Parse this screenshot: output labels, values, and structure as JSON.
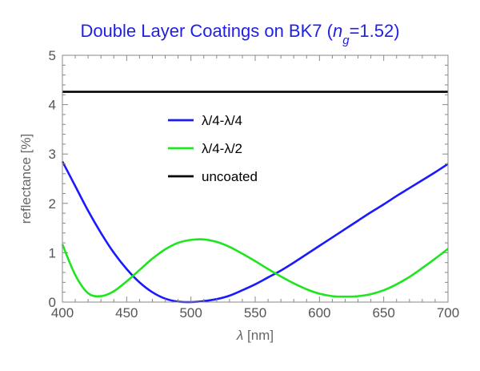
{
  "chart_data": {
    "type": "line",
    "title_main": "Double Layer Coatings on BK7 (",
    "title_var": "n",
    "title_sub": "g",
    "title_rest": "=1.52)",
    "xlabel_var": "λ",
    "xlabel_unit": " [nm]",
    "ylabel": "reflectance [%]",
    "xlim": [
      400,
      700
    ],
    "ylim": [
      0,
      5
    ],
    "xticks": [
      400,
      450,
      500,
      550,
      600,
      650,
      700
    ],
    "yticks": [
      0,
      1,
      2,
      3,
      4,
      5
    ],
    "grid": false,
    "legend_position": "upper-center",
    "series": [
      {
        "name": "λ/4-λ/4",
        "color": "#1a1aff",
        "x": [
          400,
          410,
          420,
          430,
          440,
          450,
          460,
          470,
          480,
          490,
          500,
          510,
          520,
          530,
          540,
          550,
          560,
          570,
          580,
          590,
          600,
          610,
          620,
          630,
          640,
          650,
          660,
          670,
          680,
          690,
          700
        ],
        "y": [
          2.85,
          2.35,
          1.85,
          1.4,
          1.0,
          0.67,
          0.4,
          0.2,
          0.07,
          0.01,
          0.0,
          0.02,
          0.06,
          0.13,
          0.24,
          0.36,
          0.5,
          0.64,
          0.8,
          0.97,
          1.14,
          1.31,
          1.48,
          1.65,
          1.82,
          1.98,
          2.15,
          2.31,
          2.47,
          2.63,
          2.8
        ]
      },
      {
        "name": "λ/4-λ/2",
        "color": "#1ee61e",
        "x": [
          400,
          410,
          420,
          430,
          440,
          450,
          460,
          470,
          480,
          490,
          500,
          510,
          520,
          530,
          540,
          550,
          560,
          570,
          580,
          590,
          600,
          610,
          620,
          630,
          640,
          650,
          660,
          670,
          680,
          690,
          700
        ],
        "y": [
          1.17,
          0.55,
          0.18,
          0.12,
          0.22,
          0.42,
          0.65,
          0.88,
          1.07,
          1.2,
          1.26,
          1.27,
          1.22,
          1.12,
          0.98,
          0.83,
          0.67,
          0.52,
          0.38,
          0.26,
          0.17,
          0.12,
          0.11,
          0.12,
          0.16,
          0.24,
          0.36,
          0.51,
          0.69,
          0.88,
          1.08
        ]
      },
      {
        "name": "uncoated",
        "color": "#000000",
        "x": [
          400,
          700
        ],
        "y": [
          4.26,
          4.26
        ]
      }
    ]
  }
}
